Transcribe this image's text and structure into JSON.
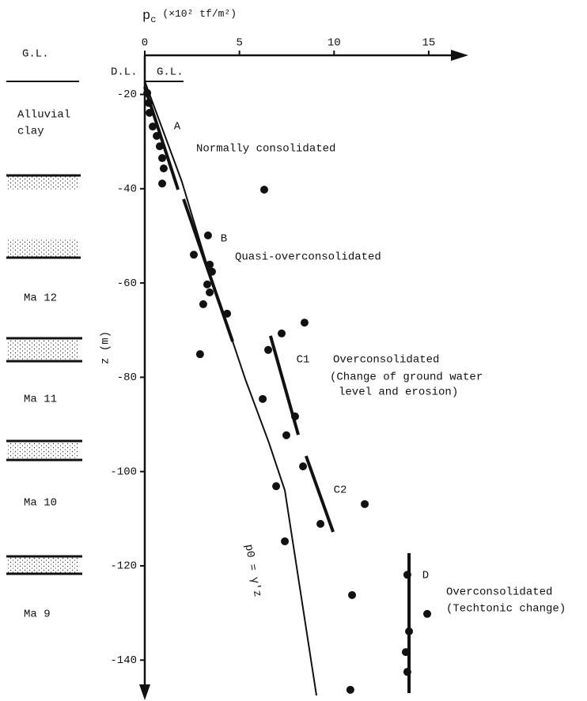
{
  "chart_data": {
    "type": "scatter",
    "x_label_symbol": "p",
    "x_label_subscript": "c",
    "x_label_units": "(×10² tf/m²)",
    "y_label": "z (m)",
    "xlim": [
      0,
      16.8
    ],
    "xticks": [
      0,
      5,
      10,
      15
    ],
    "ylim": [
      -11.7,
      -147.5
    ],
    "yticks": [
      -20,
      -40,
      -60,
      -80,
      -100,
      -120,
      -140
    ],
    "color": "#111111",
    "x": [
      0.13,
      0.21,
      0.25,
      0.42,
      0.63,
      0.79,
      0.92,
      1.0,
      0.92,
      6.31,
      3.34,
      2.59,
      3.43,
      3.55,
      3.3,
      3.43,
      3.09,
      4.35,
      7.23,
      8.44,
      6.52,
      2.92,
      6.23,
      7.94,
      7.48,
      8.36,
      6.94,
      11.62,
      9.28,
      7.4,
      10.95,
      13.87,
      14.92,
      13.96,
      13.79,
      13.87,
      10.86
    ],
    "y": [
      -19.7,
      -21.8,
      -23.9,
      -26.8,
      -28.8,
      -31.0,
      -33.5,
      -35.7,
      -38.9,
      -40.2,
      -49.9,
      -54.0,
      -56.1,
      -57.6,
      -60.3,
      -62.0,
      -64.5,
      -66.5,
      -70.7,
      -68.4,
      -74.2,
      -75.1,
      -84.6,
      -88.3,
      -92.3,
      -98.9,
      -103.1,
      -106.9,
      -111.1,
      -114.8,
      -126.2,
      -121.9,
      -130.2,
      -133.9,
      -138.3,
      -142.5,
      -146.3
    ],
    "lines": [
      {
        "name": "A",
        "linewidth": 4,
        "x": [
          0,
          1.76
        ],
        "y": [
          -18.4,
          -40.2
        ]
      },
      {
        "name": "B",
        "linewidth": 4,
        "x": [
          2.05,
          4.64
        ],
        "y": [
          -42.2,
          -72.4
        ]
      },
      {
        "name": "C1",
        "linewidth": 4,
        "x": [
          6.64,
          8.11
        ],
        "y": [
          -71.2,
          -92.2
        ]
      },
      {
        "name": "C2",
        "linewidth": 4,
        "x": [
          8.52,
          9.95
        ],
        "y": [
          -96.7,
          -112.8
        ]
      },
      {
        "name": "D",
        "linewidth": 4,
        "x": [
          13.96,
          13.96
        ],
        "y": [
          -117.3,
          -147
        ]
      },
      {
        "name": "p0 = γ'z",
        "linewidth": 2,
        "x": [
          0,
          1.96,
          3.22,
          5.31,
          6.56,
          7.4,
          9.07
        ],
        "y": [
          -17.2,
          -38.5,
          -55.3,
          -80.4,
          -93.9,
          -104.0,
          -147.5
        ]
      }
    ],
    "annotations": [
      "Normally consolidated",
      "Quasi-overconsolidated",
      "Overconsolidated",
      "(Change of ground water",
      "level and erosion)",
      "Overconsolidated",
      "(Techtonic change)"
    ],
    "gl_label": "G.L.",
    "dl_label": "D.L.",
    "strata": [
      "Alluvial",
      "clay",
      "Ma 12",
      "Ma 11",
      "Ma 10",
      "Ma 9"
    ]
  }
}
